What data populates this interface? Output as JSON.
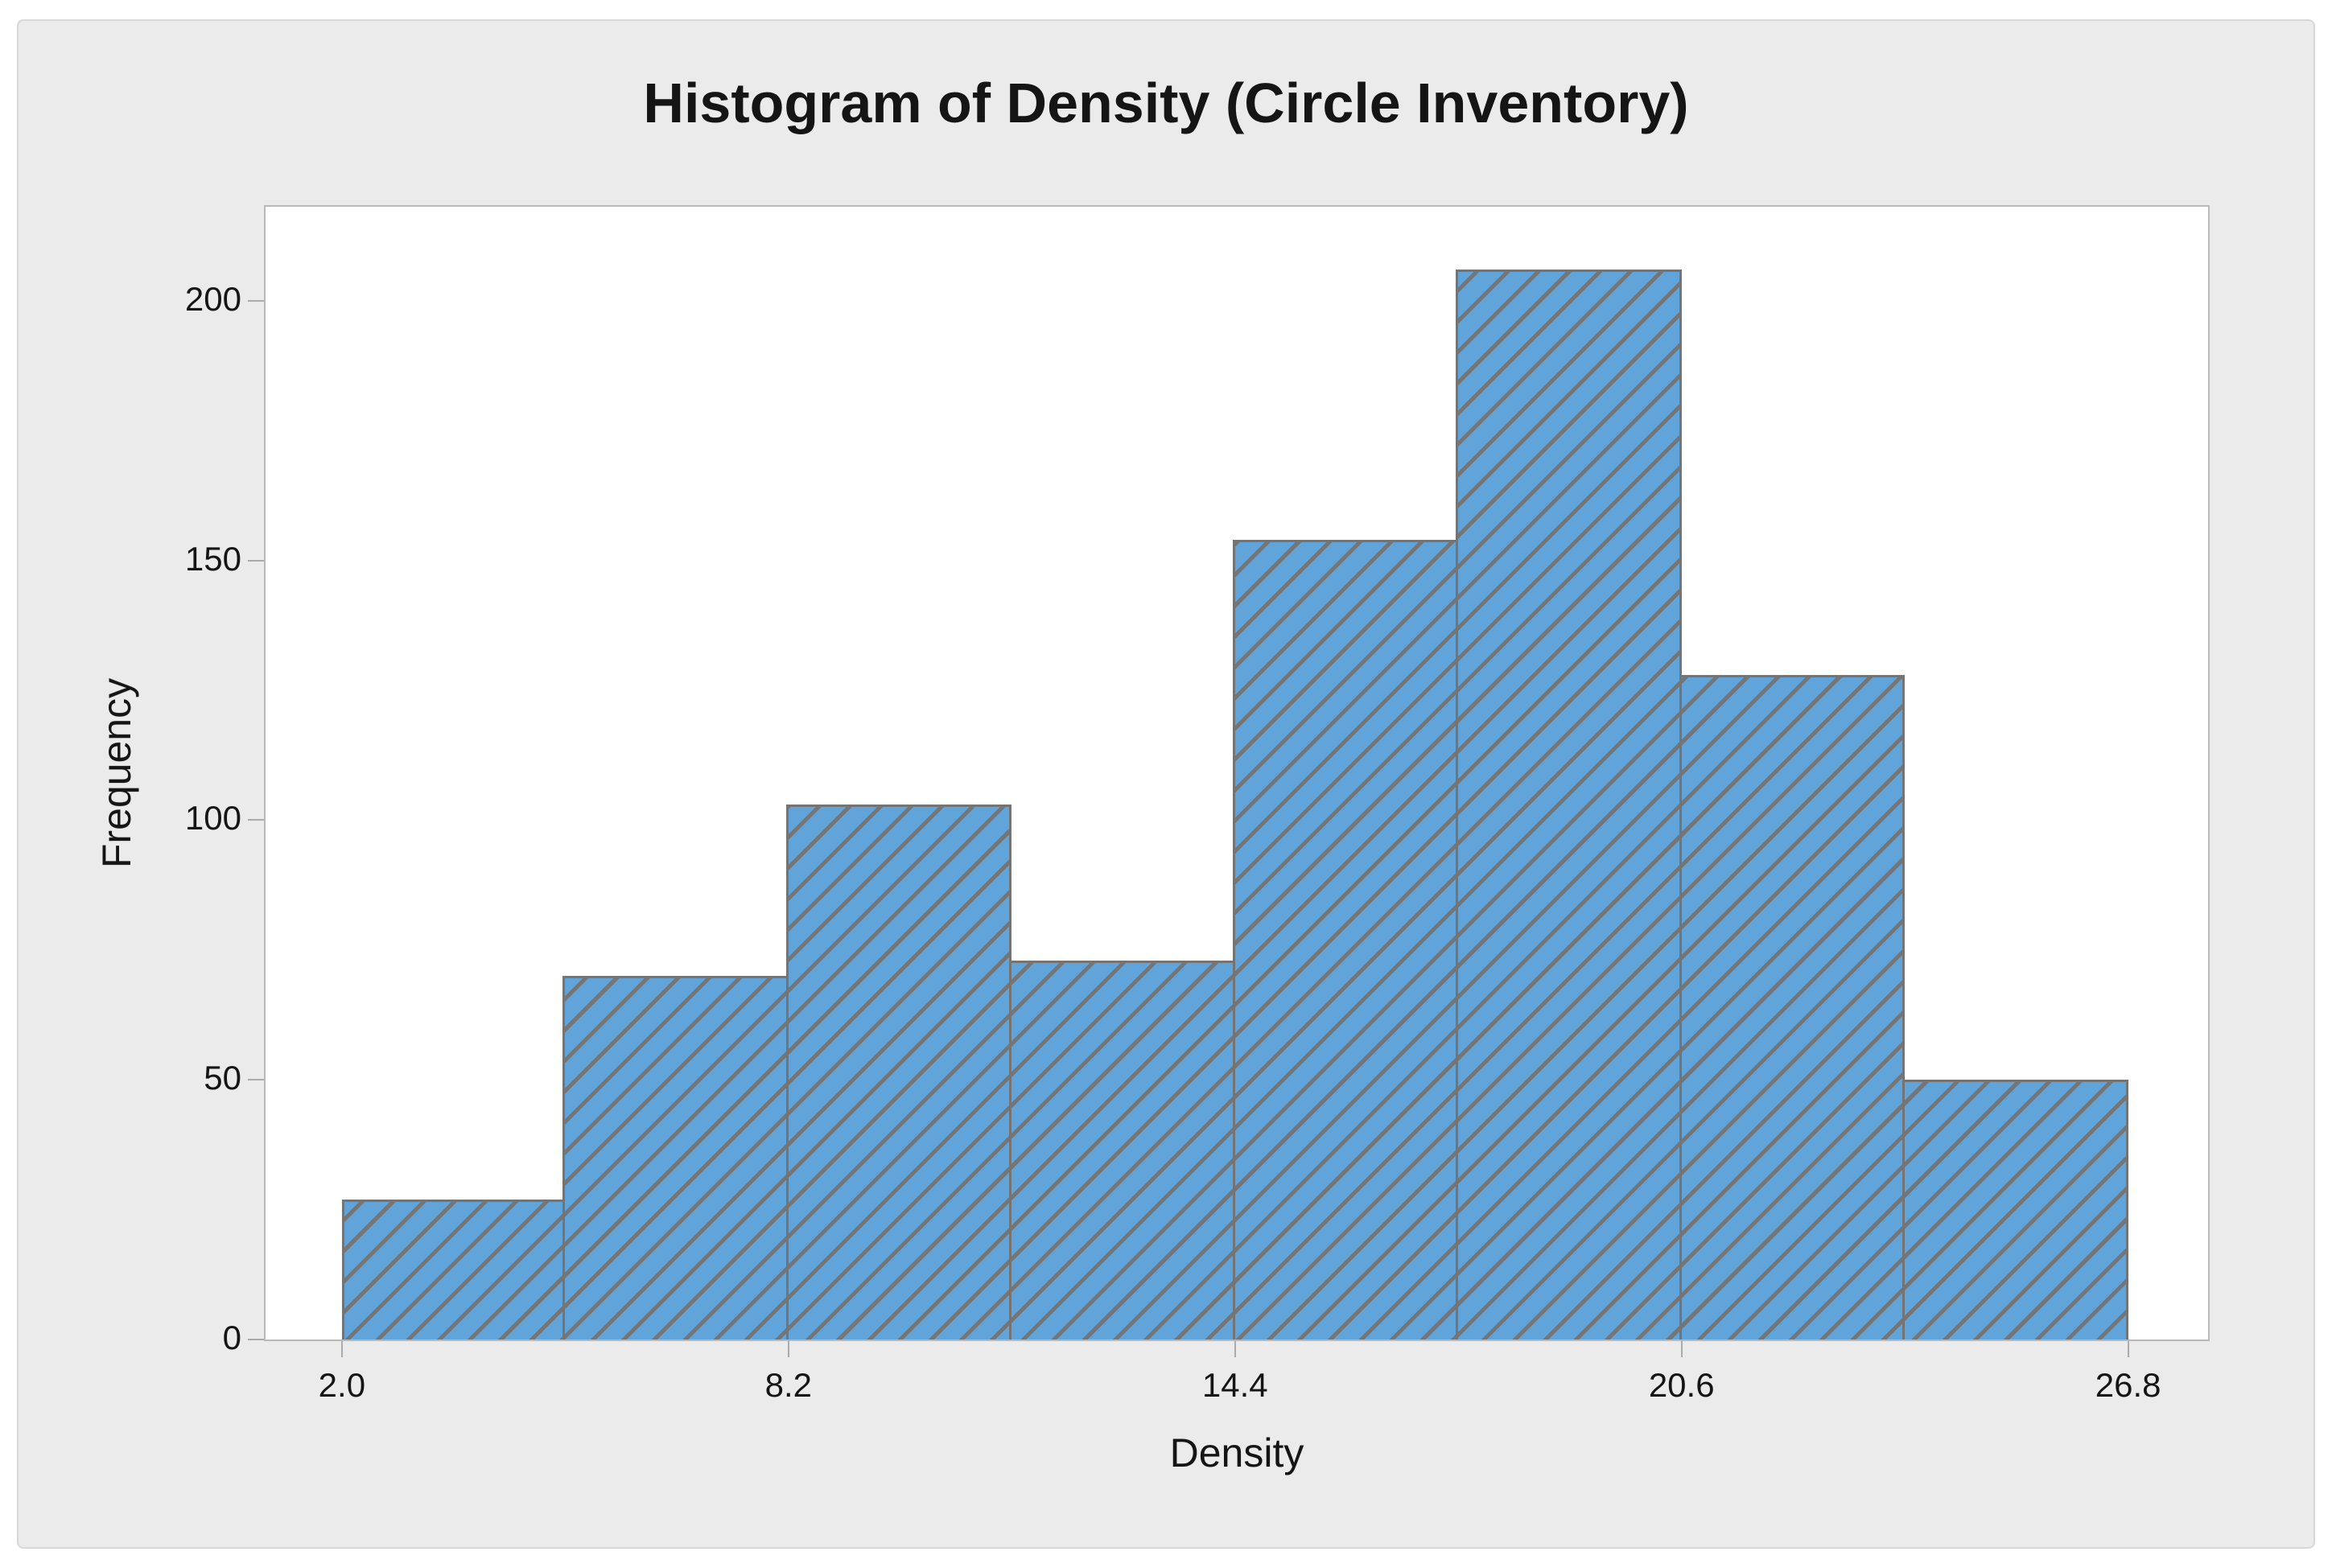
{
  "chart_data": {
    "type": "bar",
    "subtype": "histogram",
    "title": "Histogram of Density (Circle Inventory)",
    "xlabel": "Density",
    "ylabel": "Frequency",
    "bin_edges": [
      2.0,
      5.1,
      8.2,
      11.3,
      14.4,
      17.5,
      20.6,
      23.7,
      26.8
    ],
    "bin_width": 3.1,
    "values": [
      27,
      70,
      103,
      73,
      154,
      206,
      128,
      50
    ],
    "x_ticks": [
      {
        "value": 2.0,
        "label": "2.0"
      },
      {
        "value": 8.2,
        "label": "8.2"
      },
      {
        "value": 14.4,
        "label": "14.4"
      },
      {
        "value": 20.6,
        "label": "20.6"
      },
      {
        "value": 26.8,
        "label": "26.8"
      }
    ],
    "y_ticks": [
      {
        "value": 0,
        "label": "0"
      },
      {
        "value": 50,
        "label": "50"
      },
      {
        "value": 100,
        "label": "100"
      },
      {
        "value": 150,
        "label": "150"
      },
      {
        "value": 200,
        "label": "200"
      }
    ],
    "xlim": [
      0.94,
      27.91
    ],
    "ylim": [
      0,
      218.1
    ],
    "grid": false,
    "legend": false,
    "hatch_style": "forward-diagonal",
    "colors": {
      "bar_fill": "#61a4da",
      "bar_hatch": "#757575",
      "bar_border": "#747474",
      "panel_background": "#ebebeb",
      "plot_background": "#ffffff",
      "axis": "#ababab",
      "text": "#151515"
    }
  }
}
